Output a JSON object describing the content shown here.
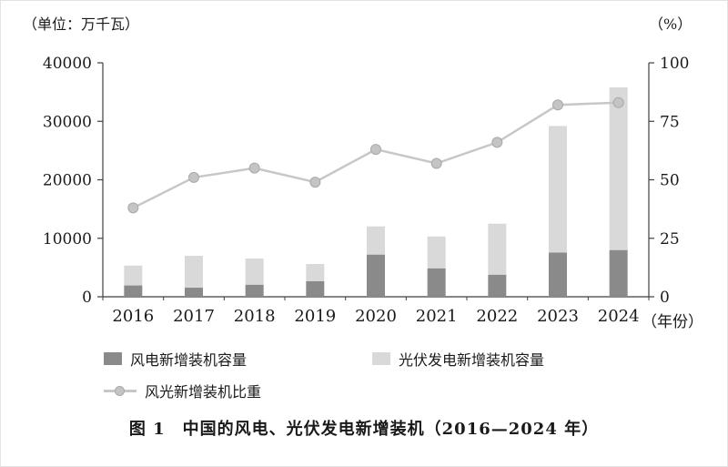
{
  "colors": {
    "wind_bar": "#8a8a8a",
    "solar_bar": "#d9d9d9",
    "ratio_line": "#c7c7c7",
    "marker_fill": "#c4c4c4",
    "marker_stroke": "#a9a9a9",
    "axis": "#3f3f3f",
    "text": "#1a1a1a"
  },
  "chart_data": {
    "type": "bar",
    "subtype": "stacked-bars-with-line",
    "title": "图 1　中国的风电、光伏发电新增装机（2016—2024 年）",
    "categories": [
      "2016",
      "2017",
      "2018",
      "2019",
      "2020",
      "2021",
      "2022",
      "2023",
      "2024"
    ],
    "series": [
      {
        "name": "风电新增装机容量",
        "type": "bar",
        "stack": "capacity",
        "axis": "left",
        "values": [
          1930,
          1550,
          2050,
          2650,
          7200,
          4850,
          3760,
          7550,
          7980
        ]
      },
      {
        "name": "光伏发电新增装机容量",
        "type": "bar",
        "stack": "capacity",
        "axis": "left",
        "values": [
          3400,
          5450,
          4500,
          2950,
          4830,
          5460,
          8740,
          21650,
          27820
        ]
      },
      {
        "name": "风光新增装机比重",
        "type": "line",
        "axis": "right",
        "values": [
          38,
          51,
          55,
          49,
          63,
          57,
          66,
          82,
          83
        ]
      }
    ],
    "left_axis": {
      "unit": "（单位：万千瓦）",
      "min": 0,
      "max": 40000,
      "ticks": [
        0,
        10000,
        20000,
        30000,
        40000
      ]
    },
    "right_axis": {
      "unit": "（%）",
      "min": 0,
      "max": 100,
      "ticks": [
        0,
        25,
        50,
        75,
        100
      ]
    },
    "x_axis": {
      "unit": "（年份）"
    },
    "grid": false,
    "legend_position": "bottom-left"
  }
}
